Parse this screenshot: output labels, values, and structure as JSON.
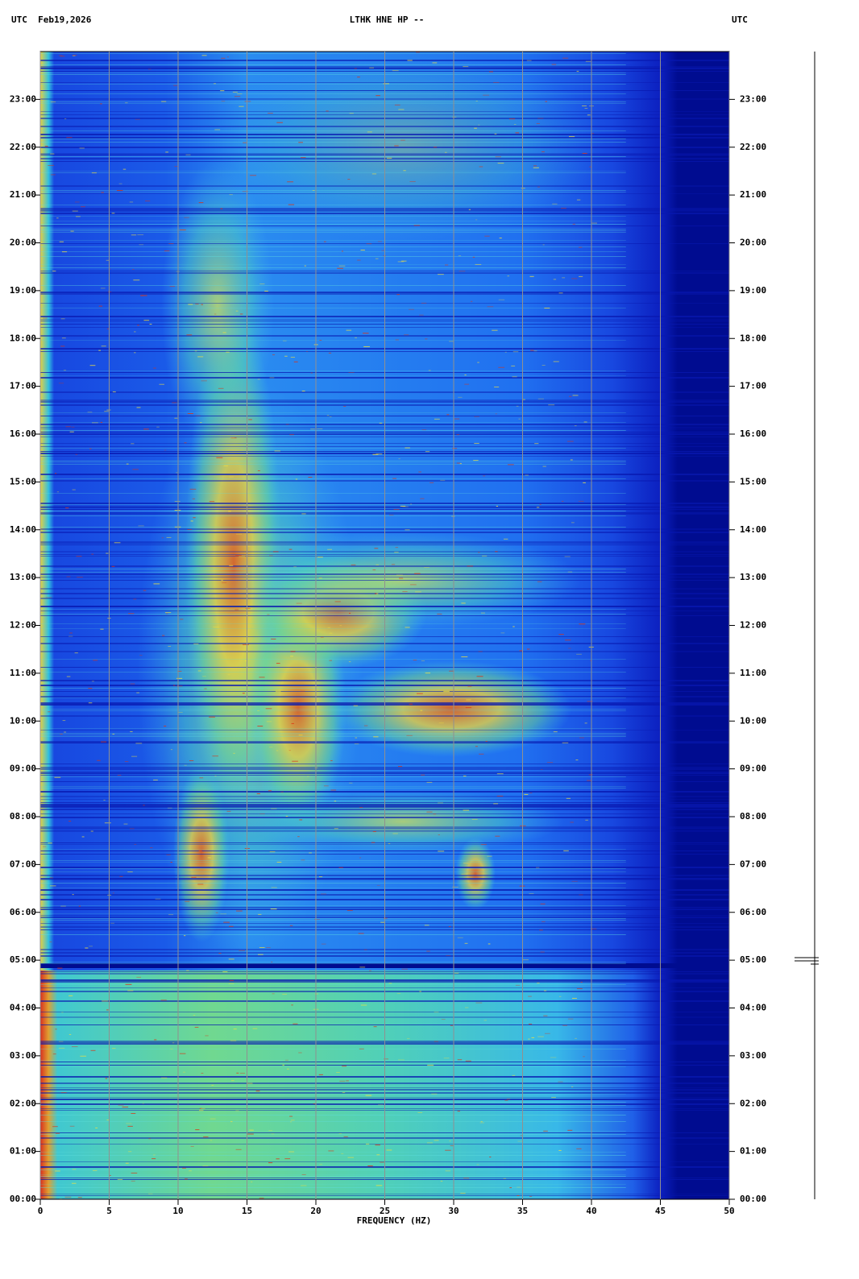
{
  "header": {
    "left": "UTC  Feb19,2026",
    "center": "LTHK HNE HP --",
    "right": "UTC"
  },
  "chart_data": {
    "type": "spectrogram",
    "x_label": "FREQUENCY (HZ)",
    "xlim": [
      0,
      50
    ],
    "xticks": [
      0,
      5,
      10,
      15,
      20,
      25,
      30,
      35,
      40,
      45,
      50
    ],
    "ylim": [
      0,
      24
    ],
    "yticks": [
      {
        "value": 0,
        "label": "00:00"
      },
      {
        "value": 1,
        "label": "01:00"
      },
      {
        "value": 2,
        "label": "02:00"
      },
      {
        "value": 3,
        "label": "03:00"
      },
      {
        "value": 4,
        "label": "04:00"
      },
      {
        "value": 5,
        "label": "05:00"
      },
      {
        "value": 6,
        "label": "06:00"
      },
      {
        "value": 7,
        "label": "07:00"
      },
      {
        "value": 8,
        "label": "08:00"
      },
      {
        "value": 9,
        "label": "09:00"
      },
      {
        "value": 10,
        "label": "10:00"
      },
      {
        "value": 11,
        "label": "11:00"
      },
      {
        "value": 12,
        "label": "12:00"
      },
      {
        "value": 13,
        "label": "13:00"
      },
      {
        "value": 14,
        "label": "14:00"
      },
      {
        "value": 15,
        "label": "15:00"
      },
      {
        "value": 16,
        "label": "16:00"
      },
      {
        "value": 17,
        "label": "17:00"
      },
      {
        "value": 18,
        "label": "18:00"
      },
      {
        "value": 19,
        "label": "19:00"
      },
      {
        "value": 20,
        "label": "20:00"
      },
      {
        "value": 21,
        "label": "21:00"
      },
      {
        "value": 22,
        "label": "22:00"
      },
      {
        "value": 23,
        "label": "23:00"
      }
    ],
    "grid": true
  }
}
